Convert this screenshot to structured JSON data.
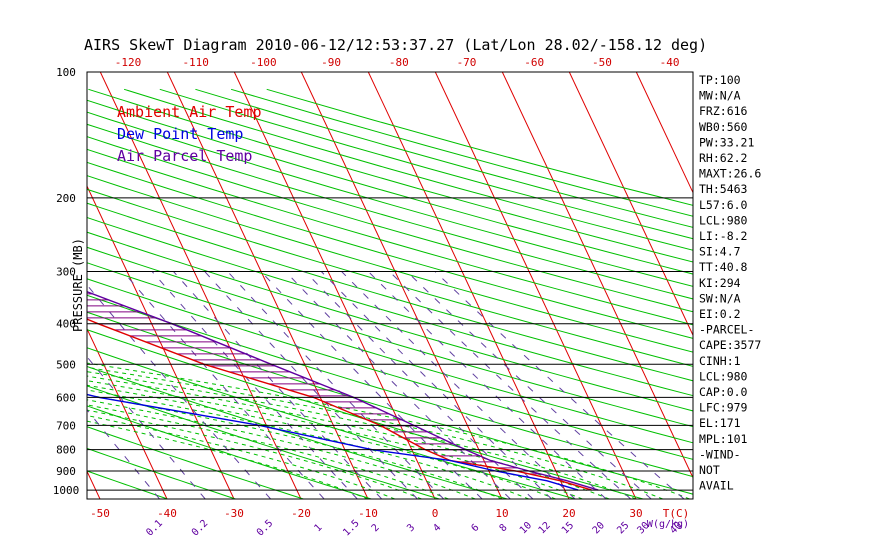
{
  "chart_data": {
    "type": "line",
    "title": "AIRS SkewT Diagram 2010-06-12/12:53:37.27 (Lat/Lon 28.02/-158.12 deg)",
    "ylabel": "PRESSURE (MB)",
    "xlabel": "T(C)",
    "mixing_ratio_label": "W(g/kg)",
    "pressure_ticks": [
      100,
      200,
      300,
      400,
      500,
      600,
      700,
      800,
      900,
      1000
    ],
    "bottom_temp_ticks": [
      -50,
      -40,
      -30,
      -20,
      -10,
      0,
      10,
      20,
      30
    ],
    "top_temp_ticks": [
      -120,
      -110,
      -100,
      -90,
      -80,
      -70,
      -60,
      -50,
      -40
    ],
    "mixing_ratio_ticks": [
      "0.1",
      "0.2",
      "0.5",
      "1",
      "1.5",
      "2",
      "3",
      "4",
      "6",
      "8",
      "10",
      "12",
      "15",
      "20",
      "25",
      "30",
      "40"
    ],
    "legend": {
      "placement": "top-left",
      "entries": [
        {
          "name": "Ambient Air Temp",
          "color": "#e00000"
        },
        {
          "name": "Dew Point Temp",
          "color": "#0000e0"
        },
        {
          "name": "Air Parcel Temp",
          "color": "#6000a0"
        }
      ]
    },
    "colors": {
      "isotherm": "#e00000",
      "dry_adiabat": "#00c000",
      "moist_adiabat": "#00c000",
      "mixing_ratio": "#6040a0",
      "isobar": "#000000",
      "cape_hatch": "#800080"
    },
    "series": [
      {
        "name": "Ambient Air Temp",
        "points": [
          [
            100,
            -71
          ],
          [
            150,
            -75
          ],
          [
            175,
            -80
          ],
          [
            200,
            -78
          ],
          [
            250,
            -66
          ],
          [
            300,
            -53
          ],
          [
            400,
            -38
          ],
          [
            500,
            -25
          ],
          [
            600,
            -11
          ],
          [
            700,
            -3
          ],
          [
            800,
            2
          ],
          [
            850,
            5
          ],
          [
            900,
            14
          ],
          [
            950,
            20
          ],
          [
            1000,
            24
          ]
        ]
      },
      {
        "name": "Dew Point Temp",
        "points": [
          [
            100,
            -86
          ],
          [
            150,
            -99
          ],
          [
            200,
            -108
          ],
          [
            250,
            -115
          ],
          [
            300,
            -105
          ],
          [
            350,
            -91
          ],
          [
            400,
            -75
          ],
          [
            450,
            -70
          ],
          [
            500,
            -61
          ],
          [
            600,
            -43
          ],
          [
            700,
            -21
          ],
          [
            800,
            -6
          ],
          [
            850,
            5
          ],
          [
            900,
            11
          ],
          [
            950,
            18
          ],
          [
            1000,
            22
          ]
        ]
      },
      {
        "name": "Air Parcel Temp",
        "points": [
          [
            100,
            -78
          ],
          [
            150,
            -83
          ],
          [
            200,
            -72
          ],
          [
            250,
            -58
          ],
          [
            300,
            -44
          ],
          [
            400,
            -27
          ],
          [
            500,
            -15
          ],
          [
            600,
            -5
          ],
          [
            700,
            2
          ],
          [
            800,
            8
          ],
          [
            850,
            11
          ],
          [
            900,
            16
          ],
          [
            950,
            21
          ],
          [
            1000,
            25
          ]
        ]
      }
    ]
  },
  "indices": [
    "TP:100",
    "MW:N/A",
    "FRZ:616",
    "WB0:560",
    "PW:33.21",
    "RH:62.2",
    "MAXT:26.6",
    "TH:5463",
    "L57:6.0",
    "LCL:980",
    "LI:-8.2",
    "SI:4.7",
    "TT:40.8",
    "KI:294",
    "SW:N/A",
    "EI:0.2",
    "-PARCEL-",
    "CAPE:3577",
    "CINH:1",
    "LCL:980",
    "CAP:0.0",
    "LFC:979",
    "EL:171",
    "MPL:101",
    "-WIND-",
    "NOT",
    "AVAIL"
  ]
}
